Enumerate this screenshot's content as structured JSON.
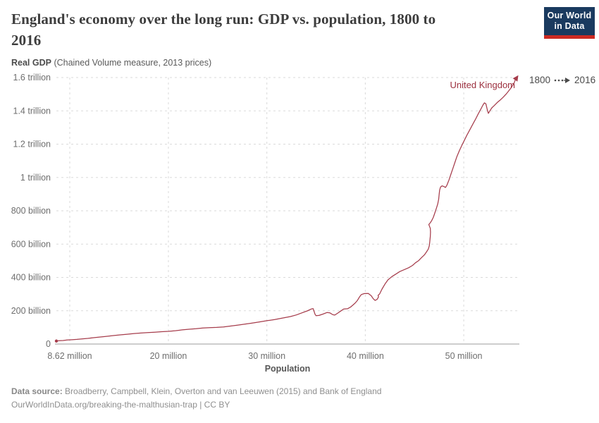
{
  "header": {
    "title_line1": "England's economy over the long run: GDP vs. population, 1800 to",
    "title_line2": "2016",
    "subtitle_bold": "Real GDP",
    "subtitle_rest": " (Chained Volume measure, 2013 prices)"
  },
  "logo": {
    "line1": "Our World",
    "line2": "in Data"
  },
  "legend": {
    "start_year": "1800",
    "end_year": "2016"
  },
  "footer": {
    "source_label": "Data source:",
    "source_rest": " Broadberry, Campbell, Klein, Overton and van Leeuwen (2015) and Bank of England",
    "link_line": "OurWorldInData.org/breaking-the-malthusian-trap | CC BY"
  },
  "colors": {
    "accent": "#a63d4c",
    "label": "#9c2f3e",
    "logo_bg": "#1a3a5f",
    "logo_stripe": "#cc2a22"
  },
  "chart_data": {
    "type": "line",
    "title": "England's economy over the long run: GDP vs. population, 1800 to 2016",
    "xlabel": "Population",
    "ylabel": "Real GDP (Chained Volume measure, 2013 prices)",
    "series_label": "United Kingdom",
    "x_unit": "million people",
    "y_unit": "billion (2013 prices)",
    "xlim": [
      8.62,
      55.6
    ],
    "ylim": [
      0,
      1600
    ],
    "grid": true,
    "x_ticks": [
      {
        "label": "8.62 million",
        "pop": 8.62,
        "grid": 9.98
      },
      {
        "label": "20 million",
        "pop": 20
      },
      {
        "label": "30 million",
        "pop": 30
      },
      {
        "label": "40 million",
        "pop": 40
      },
      {
        "label": "50 million",
        "pop": 50
      }
    ],
    "y_ticks": [
      {
        "label": "0",
        "value": 0
      },
      {
        "label": "200 billion",
        "value": 200
      },
      {
        "label": "400 billion",
        "value": 400
      },
      {
        "label": "600 billion",
        "value": 600
      },
      {
        "label": "800 billion",
        "value": 800
      },
      {
        "label": "1 trillion",
        "value": 1000
      },
      {
        "label": "1.2 trillion",
        "value": 1200
      },
      {
        "label": "1.4 trillion",
        "value": 1400
      },
      {
        "label": "1.6 trillion",
        "value": 1600
      }
    ],
    "points": [
      [
        8.62,
        18
      ],
      [
        8.9,
        20
      ],
      [
        9.3,
        21
      ],
      [
        9.7,
        24
      ],
      [
        10.2,
        26
      ],
      [
        10.7,
        28
      ],
      [
        11.2,
        31
      ],
      [
        11.8,
        34
      ],
      [
        12.4,
        38
      ],
      [
        13.0,
        42
      ],
      [
        13.7,
        46
      ],
      [
        14.4,
        51
      ],
      [
        15.1,
        55
      ],
      [
        15.8,
        59
      ],
      [
        16.5,
        63
      ],
      [
        17.2,
        66
      ],
      [
        17.9,
        69
      ],
      [
        18.6,
        71
      ],
      [
        19.3,
        74
      ],
      [
        20.0,
        76
      ],
      [
        20.7,
        80
      ],
      [
        21.4,
        85
      ],
      [
        22.1,
        89
      ],
      [
        22.8,
        92
      ],
      [
        23.5,
        96
      ],
      [
        24.2,
        98
      ],
      [
        24.9,
        100
      ],
      [
        25.6,
        103
      ],
      [
        26.3,
        108
      ],
      [
        27.0,
        113
      ],
      [
        27.7,
        119
      ],
      [
        28.4,
        125
      ],
      [
        29.2,
        132
      ],
      [
        30.0,
        140
      ],
      [
        30.8,
        147
      ],
      [
        31.6,
        156
      ],
      [
        32.4,
        165
      ],
      [
        33.0,
        175
      ],
      [
        33.6,
        188
      ],
      [
        34.1,
        199
      ],
      [
        34.5,
        210
      ],
      [
        34.7,
        213
      ],
      [
        34.8,
        196
      ],
      [
        34.9,
        178
      ],
      [
        35.0,
        170
      ],
      [
        35.3,
        172
      ],
      [
        35.7,
        180
      ],
      [
        36.1,
        189
      ],
      [
        36.4,
        187
      ],
      [
        36.7,
        176
      ],
      [
        36.9,
        174
      ],
      [
        37.2,
        186
      ],
      [
        37.5,
        198
      ],
      [
        37.8,
        210
      ],
      [
        38.2,
        212
      ],
      [
        38.5,
        222
      ],
      [
        38.8,
        237
      ],
      [
        39.0,
        248
      ],
      [
        39.2,
        262
      ],
      [
        39.4,
        282
      ],
      [
        39.6,
        297
      ],
      [
        39.9,
        303
      ],
      [
        40.3,
        304
      ],
      [
        40.6,
        290
      ],
      [
        40.8,
        272
      ],
      [
        41.0,
        262
      ],
      [
        41.2,
        268
      ],
      [
        41.35,
        283
      ],
      [
        41.3,
        293
      ],
      [
        41.45,
        300
      ],
      [
        41.7,
        330
      ],
      [
        42.0,
        360
      ],
      [
        42.3,
        385
      ],
      [
        42.7,
        405
      ],
      [
        43.1,
        420
      ],
      [
        43.5,
        435
      ],
      [
        44.0,
        448
      ],
      [
        44.4,
        458
      ],
      [
        44.8,
        472
      ],
      [
        45.1,
        488
      ],
      [
        45.4,
        500
      ],
      [
        45.7,
        518
      ],
      [
        46.0,
        535
      ],
      [
        46.2,
        552
      ],
      [
        46.4,
        570
      ],
      [
        46.5,
        590
      ],
      [
        46.55,
        615
      ],
      [
        46.6,
        645
      ],
      [
        46.62,
        672
      ],
      [
        46.6,
        695
      ],
      [
        46.5,
        710
      ],
      [
        46.45,
        718
      ],
      [
        46.6,
        728
      ],
      [
        46.75,
        742
      ],
      [
        46.9,
        760
      ],
      [
        47.05,
        785
      ],
      [
        47.2,
        812
      ],
      [
        47.35,
        840
      ],
      [
        47.45,
        870
      ],
      [
        47.5,
        900
      ],
      [
        47.55,
        925
      ],
      [
        47.65,
        943
      ],
      [
        47.8,
        950
      ],
      [
        48.0,
        945
      ],
      [
        48.15,
        940
      ],
      [
        48.3,
        955
      ],
      [
        48.5,
        985
      ],
      [
        48.7,
        1020
      ],
      [
        48.9,
        1055
      ],
      [
        49.1,
        1090
      ],
      [
        49.3,
        1125
      ],
      [
        49.55,
        1160
      ],
      [
        49.8,
        1192
      ],
      [
        50.05,
        1222
      ],
      [
        50.3,
        1252
      ],
      [
        50.6,
        1285
      ],
      [
        50.9,
        1318
      ],
      [
        51.2,
        1350
      ],
      [
        51.5,
        1385
      ],
      [
        51.75,
        1412
      ],
      [
        51.95,
        1435
      ],
      [
        52.1,
        1448
      ],
      [
        52.25,
        1442
      ],
      [
        52.4,
        1405
      ],
      [
        52.5,
        1385
      ],
      [
        52.65,
        1400
      ],
      [
        52.85,
        1418
      ],
      [
        53.1,
        1432
      ],
      [
        53.4,
        1450
      ],
      [
        53.7,
        1465
      ],
      [
        54.0,
        1482
      ],
      [
        54.3,
        1500
      ],
      [
        54.6,
        1522
      ],
      [
        54.85,
        1542
      ],
      [
        55.1,
        1565
      ],
      [
        55.25,
        1588
      ],
      [
        55.42,
        1603
      ]
    ]
  }
}
